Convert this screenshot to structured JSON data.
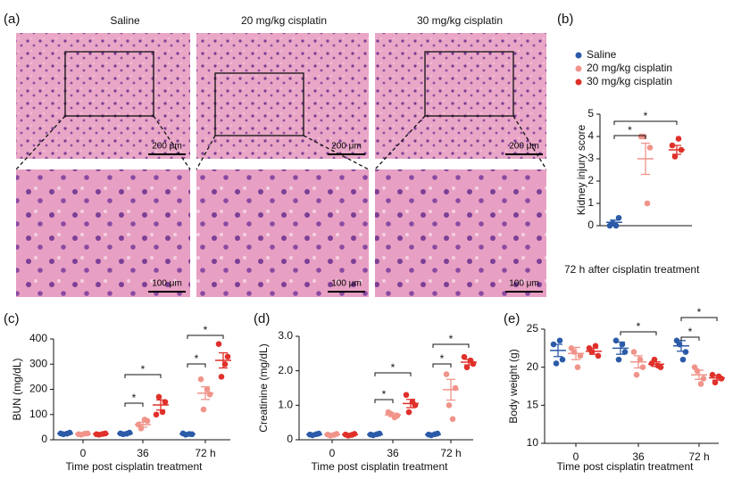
{
  "figure": {
    "panel_labels": [
      "(a)",
      "(b)",
      "(c)",
      "(d)",
      "(e)"
    ],
    "image_titles": [
      "Saline",
      "20 mg/kg cisplatin",
      "30 mg/kg cisplatin"
    ],
    "scale_bars": [
      "200 μm",
      "200 μm",
      "200 μm",
      "100 μm",
      "100 μm",
      "100 μm"
    ]
  },
  "chart_data": [
    {
      "type": "strip",
      "y_label": "Kidney injury score",
      "x_label": "72 h after cisplatin treatment",
      "ylim": [
        0,
        5
      ],
      "yticks": [
        0,
        1,
        2,
        3,
        4,
        5
      ],
      "legend": "top",
      "series": [
        {
          "name": "Saline",
          "color": "#2b5ba8",
          "points": [
            [
              0,
              0.35,
              0.1,
              0
            ]
          ],
          "mean": [
            0.15
          ],
          "error": [
            0.1
          ]
        },
        {
          "name": "20 mg/kg cisplatin",
          "color": "#f0948a",
          "points": [
            [
              4,
              3.5,
              4,
              1
            ]
          ],
          "mean": [
            3.0
          ],
          "error": [
            0.7
          ]
        },
        {
          "name": "30 mg/kg cisplatin",
          "color": "#e0302a",
          "points": [
            [
              3.6,
              3.4,
              3.1,
              3.9
            ]
          ],
          "mean": [
            3.4
          ],
          "error": [
            0.2
          ]
        }
      ],
      "annotations": [
        "*",
        "*"
      ]
    },
    {
      "type": "strip",
      "y_label": "BUN (mg/dL)",
      "x_label": "Time post cisplatin treatment",
      "categories": [
        "0",
        "36",
        "72 h"
      ],
      "ylim": [
        0,
        400
      ],
      "yticks": [
        0,
        100,
        200,
        300,
        400
      ],
      "series": [
        {
          "color": "#2b5ba8",
          "points": [
            [
              25,
              28,
              22,
              24
            ],
            [
              25,
              28,
              22,
              24
            ],
            [
              25,
              22,
              20,
              23
            ]
          ],
          "mean": [
            25,
            25,
            23
          ],
          "error": [
            2,
            2,
            1
          ]
        },
        {
          "color": "#f0948a",
          "points": [
            [
              22,
              25,
              20,
              24
            ],
            [
              60,
              75,
              45,
              80
            ],
            [
              240,
              180,
              120,
              200
            ]
          ],
          "mean": [
            23,
            60,
            185
          ],
          "error": [
            1,
            10,
            25
          ]
        },
        {
          "color": "#e0302a",
          "points": [
            [
              22,
              25,
              20,
              23
            ],
            [
              100,
              150,
              170,
              110
            ],
            [
              380,
              330,
              250,
              300
            ]
          ],
          "mean": [
            23,
            138,
            315
          ],
          "error": [
            1,
            20,
            30
          ]
        }
      ],
      "annotations": [
        "*",
        "*",
        "*",
        "*"
      ]
    },
    {
      "type": "strip",
      "y_label": "Creatinine (mg/dL)",
      "x_label": "Time post cisplatin treatment",
      "categories": [
        "0",
        "36",
        "72 h"
      ],
      "ylim": [
        0,
        3
      ],
      "yticks": [
        0,
        {
          "value": 1,
          "label": "1.0"
        },
        {
          "value": 2,
          "label": "2.0"
        },
        {
          "value": 3,
          "label": "3.0"
        }
      ],
      "series": [
        {
          "color": "#2b5ba8",
          "points": [
            [
              0.15,
              0.18,
              0.13,
              0.16
            ],
            [
              0.15,
              0.18,
              0.13,
              0.16
            ],
            [
              0.15,
              0.18,
              0.13,
              0.16
            ]
          ],
          "mean": [
            0.15,
            0.15,
            0.15
          ],
          "error": [
            0.01,
            0.01,
            0.01
          ]
        },
        {
          "color": "#f0948a",
          "points": [
            [
              0.15,
              0.17,
              0.12,
              0.14
            ],
            [
              0.8,
              0.7,
              0.75,
              0.65
            ],
            [
              1.9,
              1.5,
              1.0,
              0.6
            ]
          ],
          "mean": [
            0.15,
            0.72,
            1.45
          ],
          "error": [
            0.01,
            0.05,
            0.3
          ]
        },
        {
          "color": "#e0302a",
          "points": [
            [
              0.15,
              0.17,
              0.12,
              0.14
            ],
            [
              1.3,
              1.0,
              0.8,
              1.1
            ],
            [
              2.4,
              2.2,
              2.1,
              2.3
            ]
          ],
          "mean": [
            0.15,
            1.05,
            2.25
          ],
          "error": [
            0.01,
            0.12,
            0.08
          ]
        }
      ],
      "annotations": [
        "*",
        "*",
        "*",
        "*"
      ]
    },
    {
      "type": "strip",
      "y_label": "Body weight (g)",
      "x_label": "Time post cisplatin treatment",
      "categories": [
        "0",
        "36",
        "72 h"
      ],
      "ylim": [
        10,
        25
      ],
      "yticks": [
        10,
        15,
        20,
        25
      ],
      "series": [
        {
          "color": "#2b5ba8",
          "points": [
            [
              23,
              21,
              20.5,
              23.5
            ],
            [
              23.5,
              22,
              21,
              23
            ],
            [
              23.5,
              22,
              23,
              21
            ]
          ],
          "mean": [
            22.2,
            22.5,
            22.8
          ],
          "error": [
            0.8,
            0.8,
            0.7
          ]
        },
        {
          "color": "#f0948a",
          "points": [
            [
              22.5,
              21.5,
              22,
              20
            ],
            [
              22,
              20,
              19,
              21
            ],
            [
              20,
              18.5,
              19.5,
              17.8
            ]
          ],
          "mean": [
            21.8,
            20.7,
            19
          ],
          "error": [
            0.8,
            0.8,
            0.6
          ]
        },
        {
          "color": "#e0302a",
          "points": [
            [
              22.5,
              21.5,
              22,
              22.8
            ],
            [
              20.5,
              20,
              21,
              20.2
            ],
            [
              19,
              18.5,
              18,
              18.8
            ]
          ],
          "mean": [
            22.1,
            20.4,
            18.6
          ],
          "error": [
            0.4,
            0.3,
            0.3
          ]
        }
      ],
      "annotations": [
        "*",
        "*",
        "*"
      ]
    }
  ]
}
